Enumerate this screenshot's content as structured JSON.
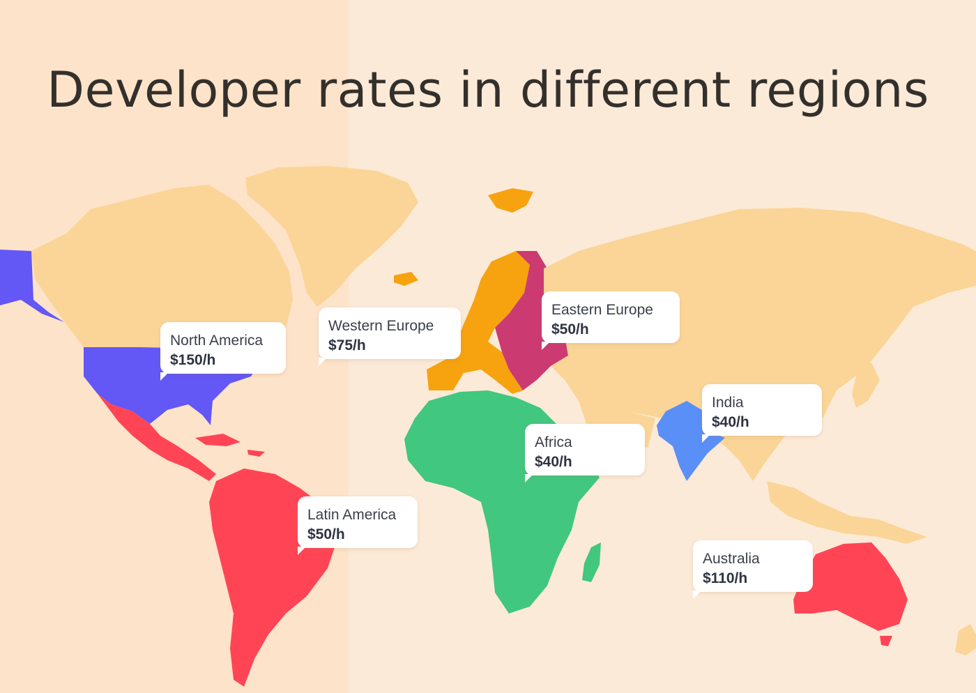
{
  "title": "Developer rates in different regions",
  "colors": {
    "background": "#fcead8",
    "land_other": "#fbd597",
    "north_america": "#6357f5",
    "latin_america": "#ff4555",
    "western_europe": "#f7a20f",
    "eastern_europe": "#cc3a72",
    "africa": "#41c77f",
    "india": "#5a8ff7",
    "australia": "#ff4555"
  },
  "regions": [
    {
      "id": "north-america",
      "name": "North America",
      "rate": "$150/h"
    },
    {
      "id": "western-europe",
      "name": "Western Europe",
      "rate": "$75/h"
    },
    {
      "id": "eastern-europe",
      "name": "Eastern Europe",
      "rate": "$50/h"
    },
    {
      "id": "india",
      "name": "India",
      "rate": "$40/h"
    },
    {
      "id": "africa",
      "name": "Africa",
      "rate": "$40/h"
    },
    {
      "id": "latin-america",
      "name": "Latin America",
      "rate": "$50/h"
    },
    {
      "id": "australia",
      "name": "Australia",
      "rate": "$110/h"
    }
  ]
}
